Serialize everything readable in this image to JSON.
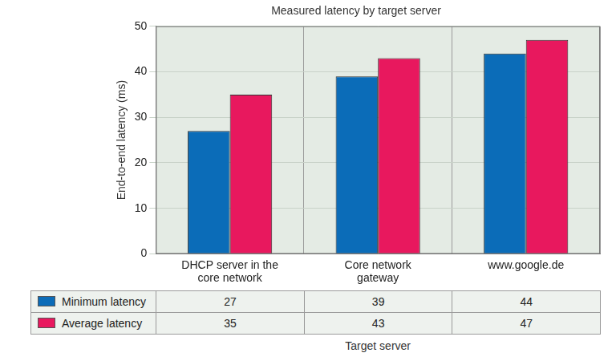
{
  "chart_data": {
    "type": "bar",
    "title": "Measured latency by target server",
    "x_label": "Target server",
    "y_label": "End-to-end latency (ms)",
    "categories": [
      "DHCP server in the core network",
      "Core network gateway",
      "www.google.de"
    ],
    "series": [
      {
        "name": "Minimum latency",
        "color": "#0b6cb8",
        "values": [
          27,
          39,
          44
        ]
      },
      {
        "name": "Average latency",
        "color": "#e8185e",
        "values": [
          35,
          43,
          47
        ]
      }
    ],
    "ylim": [
      0,
      50
    ],
    "yticks": [
      0,
      10,
      20,
      30,
      40,
      50
    ],
    "grid": true
  }
}
